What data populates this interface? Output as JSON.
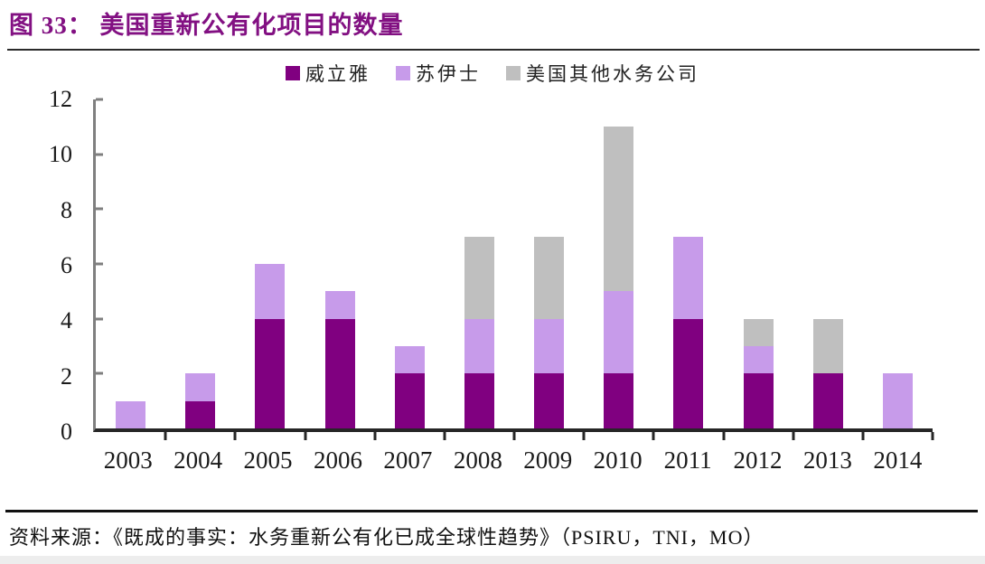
{
  "header": {
    "title": "图 33： 美国重新公有化项目的数量"
  },
  "footer": {
    "source": "资料来源：《既成的事实：水务重新公有化已成全球性趋势》（PSIRU，TNI，MO）"
  },
  "colors": {
    "title_text": "#821082",
    "title_rule": "#2B2B2B",
    "y_axis_line": "#7F7F7F",
    "x_axis_line": "#262626",
    "axis_text": "#1A1A1A",
    "source_rule": "#111111",
    "bottom_strip": "#EDEDED",
    "background": "#FFFFFF"
  },
  "chart_data": {
    "type": "bar",
    "stacked": true,
    "title": "美国重新公有化项目的数量",
    "xlabel": "",
    "ylabel": "",
    "categories": [
      "2003",
      "2004",
      "2005",
      "2006",
      "2007",
      "2008",
      "2009",
      "2010",
      "2011",
      "2012",
      "2013",
      "2014"
    ],
    "series": [
      {
        "name": "威立雅",
        "color": "#800080",
        "values": [
          0,
          1,
          4,
          4,
          2,
          2,
          2,
          2,
          4,
          2,
          2,
          0
        ]
      },
      {
        "name": "苏伊士",
        "color": "#C79BEA",
        "values": [
          1,
          1,
          2,
          1,
          1,
          2,
          2,
          3,
          3,
          1,
          0,
          2
        ]
      },
      {
        "name": "美国其他水务公司",
        "color": "#BFBFBF",
        "values": [
          0,
          0,
          0,
          0,
          0,
          3,
          3,
          6,
          0,
          1,
          2,
          0
        ]
      }
    ],
    "totals": [
      1,
      2,
      6,
      5,
      3,
      7,
      7,
      11,
      7,
      4,
      4,
      2
    ],
    "ylim": [
      0,
      12
    ],
    "yticks": [
      0,
      2,
      4,
      6,
      8,
      10,
      12
    ],
    "grid": false,
    "legend_position": "top-center"
  }
}
